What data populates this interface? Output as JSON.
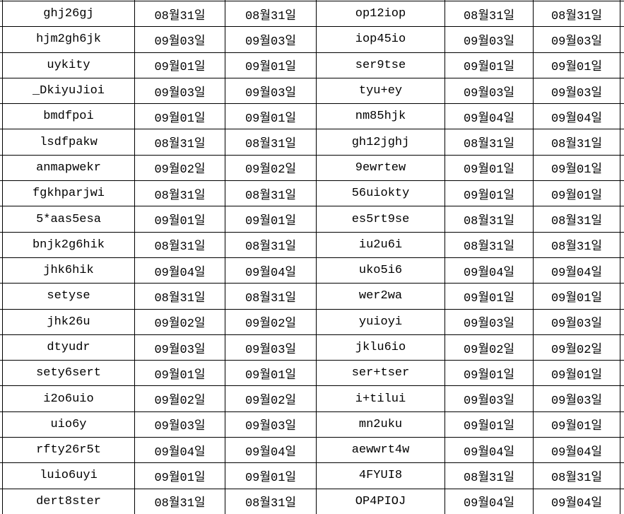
{
  "table": {
    "description_note": "",
    "rows": [
      [
        "ghj26gj",
        "08월31일",
        "08월31일",
        "op12iop",
        "08월31일",
        "08월31일"
      ],
      [
        "hjm2gh6jk",
        "09월03일",
        "09월03일",
        "iop45io",
        "09월03일",
        "09월03일"
      ],
      [
        "uykity",
        "09월01일",
        "09월01일",
        "ser9tse",
        "09월01일",
        "09월01일"
      ],
      [
        "_DkiyuJioi",
        "09월03일",
        "09월03일",
        "tyu+ey",
        "09월03일",
        "09월03일"
      ],
      [
        "bmdfpoi",
        "09월01일",
        "09월01일",
        "nm85hjk",
        "09월04일",
        "09월04일"
      ],
      [
        "lsdfpakw",
        "08월31일",
        "08월31일",
        "gh12jghj",
        "08월31일",
        "08월31일"
      ],
      [
        "anmapwekr",
        "09월02일",
        "09월02일",
        "9ewrtew",
        "09월01일",
        "09월01일"
      ],
      [
        "fgkhparjwi",
        "08월31일",
        "08월31일",
        "56uiokty",
        "09월01일",
        "09월01일"
      ],
      [
        "5*aas5esa",
        "09월01일",
        "09월01일",
        "es5rt9se",
        "08월31일",
        "08월31일"
      ],
      [
        "bnjk2g6hik",
        "08월31일",
        "08월31일",
        "iu2u6i",
        "08월31일",
        "08월31일"
      ],
      [
        "jhk6hik",
        "09월04일",
        "09월04일",
        "uko5i6",
        "09월04일",
        "09월04일"
      ],
      [
        "setyse",
        "08월31일",
        "08월31일",
        "wer2wa",
        "09월01일",
        "09월01일"
      ],
      [
        "jhk26u",
        "09월02일",
        "09월02일",
        "yuioyi",
        "09월03일",
        "09월03일"
      ],
      [
        "dtyudr",
        "09월03일",
        "09월03일",
        "jklu6io",
        "09월02일",
        "09월02일"
      ],
      [
        "sety6sert",
        "09월01일",
        "09월01일",
        "ser+tser",
        "09월01일",
        "09월01일"
      ],
      [
        "i2o6uio",
        "09월02일",
        "09월02일",
        "i+tilui",
        "09월03일",
        "09월03일"
      ],
      [
        "uio6y",
        "09월03일",
        "09월03일",
        "mn2uku",
        "09월01일",
        "09월01일"
      ],
      [
        "rfty26r5t",
        "09월04일",
        "09월04일",
        "aewwrt4w",
        "09월04일",
        "09월04일"
      ],
      [
        "luio6uyi",
        "09월01일",
        "09월01일",
        "4FYUI8",
        "08월31일",
        "08월31일"
      ],
      [
        "dert8ster",
        "08월31일",
        "08월31일",
        "OP4PIOJ",
        "09월04일",
        "09월04일"
      ]
    ]
  },
  "colors": {
    "border": "#000000",
    "background": "#ffffff",
    "text": "#000000"
  }
}
